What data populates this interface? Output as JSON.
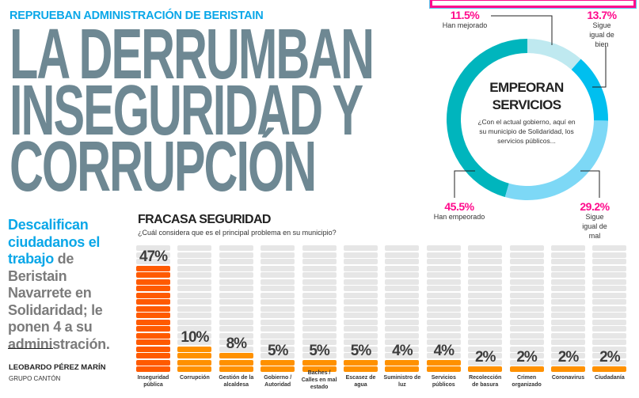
{
  "kicker": "REPRUEBAN ADMINISTRACIÓN DE BERISTAIN",
  "headline": [
    "LA DERRUMBAN",
    "INSEGURIDAD Y",
    "CORRUPCIÓN"
  ],
  "deck": {
    "highlight": "Descalifican ciudadanos el trabajo",
    "rest": " de Beristain Navarrete en Solidaridad; le ponen 4 a su administración."
  },
  "byline": {
    "author": "LEOBARDO PÉREZ MARÍN",
    "organization": "GRUPO CANTÓN"
  },
  "colors": {
    "kicker_blue": "#0aa7e8",
    "headline_gray": "#6e8893",
    "accent_pink": "#ff0a8c",
    "bar_main": "#ff5a00",
    "bar_other": "#ff9100",
    "bar_empty": "#e6e6e6"
  },
  "chart_data": [
    {
      "type": "bar",
      "title": "FRACASA SEGURIDAD",
      "subtitle": "¿Cuál considera que es el principal problema en su municipio?",
      "categories": [
        "Inseguridad pública",
        "Corrupción",
        "Gestión de la alcaldesa",
        "Gobierno / Autoridad",
        "Baches / Calles en mal estado",
        "Escasez de agua",
        "Suministro de luz",
        "Servicios públicos",
        "Recolección de basura",
        "Crimen organizado",
        "Coronavirus",
        "Ciudadanía"
      ],
      "values": [
        47,
        10,
        8,
        5,
        5,
        5,
        4,
        4,
        2,
        2,
        2,
        2
      ],
      "labels": [
        "47%",
        "10%",
        "8%",
        "5%",
        "5%",
        "5%",
        "4%",
        "4%",
        "2%",
        "2%",
        "2%",
        "2%"
      ],
      "unit": "%"
    },
    {
      "type": "pie",
      "style": "donut",
      "title": "EMPEORAN SERVICIOS",
      "subtitle": "¿Con el actual gobierno, aquí en su municipio de Solidaridad, los servicios públicos...",
      "slices": [
        {
          "label": "Han mejorado",
          "value": 11.5,
          "display": "11.5%",
          "color": "#bfe9f0"
        },
        {
          "label": "Sigue igual de bien",
          "value": 13.7,
          "display": "13.7%",
          "color": "#00bfef"
        },
        {
          "label": "Sigue igual de mal",
          "value": 29.2,
          "display": "29.2%",
          "color": "#7dd8f6"
        },
        {
          "label": "Han empeorado",
          "value": 45.5,
          "display": "45.5%",
          "color": "#00b5bd"
        }
      ]
    }
  ]
}
